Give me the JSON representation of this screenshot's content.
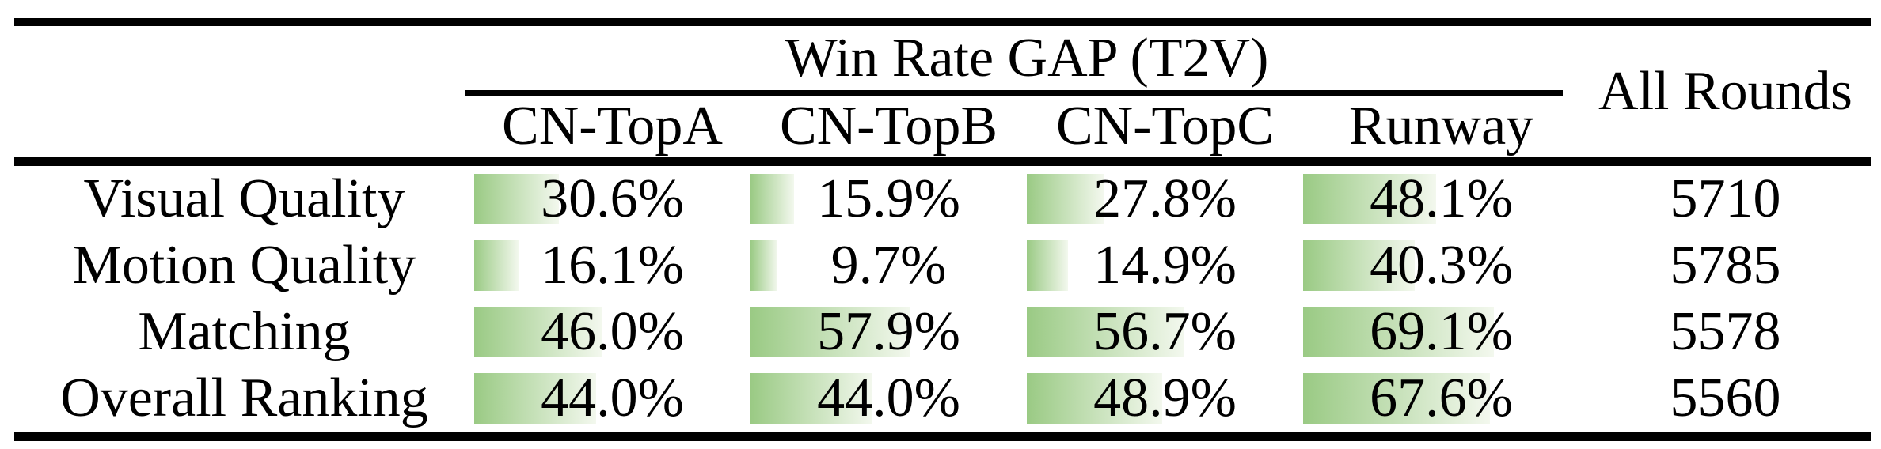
{
  "table": {
    "group_header": "Win Rate GAP (T2V)",
    "all_rounds_header": "All Rounds",
    "columns": [
      "CN-TopA",
      "CN-TopB",
      "CN-TopC",
      "Runway"
    ],
    "rows": [
      {
        "label": "Visual Quality",
        "values": [
          "30.6%",
          "15.9%",
          "27.8%",
          "48.1%"
        ],
        "all_rounds": "5710"
      },
      {
        "label": "Motion Quality",
        "values": [
          "16.1%",
          "9.7%",
          "14.9%",
          "40.3%"
        ],
        "all_rounds": "5785"
      },
      {
        "label": "Matching",
        "values": [
          "46.0%",
          "57.9%",
          "56.7%",
          "69.1%"
        ],
        "all_rounds": "5578"
      },
      {
        "label": "Overall Ranking",
        "values": [
          "44.0%",
          "44.0%",
          "48.9%",
          "67.6%"
        ],
        "all_rounds": "5560"
      }
    ],
    "colors": {
      "text": "#000000",
      "rule": "#000000",
      "bar_gradient_start": "#9aca84",
      "bar_gradient_end": "#f3f8ee"
    }
  }
}
